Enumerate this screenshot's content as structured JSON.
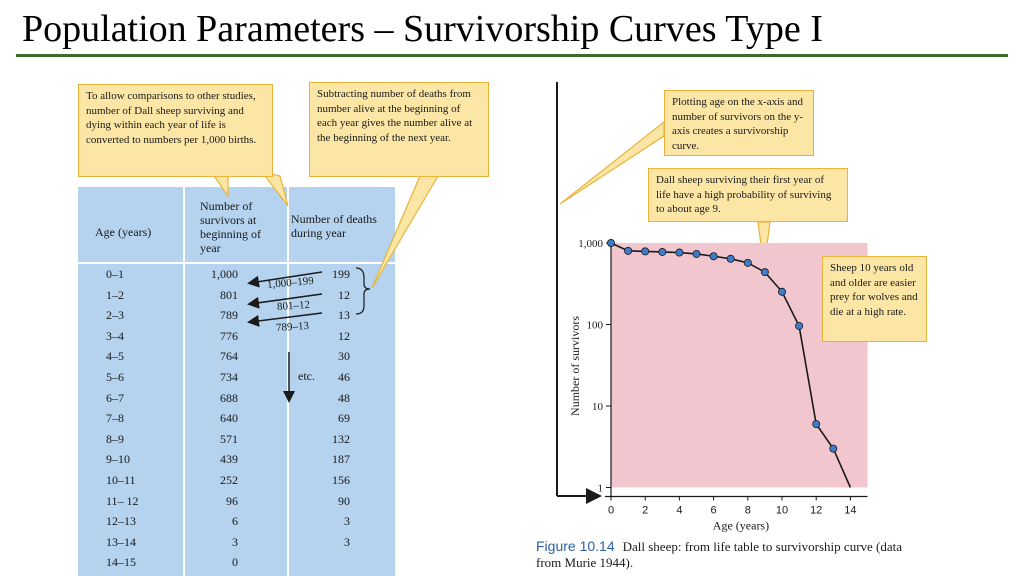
{
  "slide": {
    "title": "Population Parameters – Survivorship Curves Type I"
  },
  "life_table": {
    "headers": {
      "age": "Age (years)",
      "survivors": "Number of survivors at beginning of year",
      "deaths": "Number of deaths during year"
    },
    "rows": [
      {
        "age": "0–1",
        "survivors": "1,000",
        "deaths": "199"
      },
      {
        "age": "1–2",
        "survivors": "801",
        "deaths": "12"
      },
      {
        "age": "2–3",
        "survivors": "789",
        "deaths": "13"
      },
      {
        "age": "3–4",
        "survivors": "776",
        "deaths": "12"
      },
      {
        "age": "4–5",
        "survivors": "764",
        "deaths": "30"
      },
      {
        "age": "5–6",
        "survivors": "734",
        "deaths": "46"
      },
      {
        "age": "6–7",
        "survivors": "688",
        "deaths": "48"
      },
      {
        "age": "7–8",
        "survivors": "640",
        "deaths": "69"
      },
      {
        "age": "8–9",
        "survivors": "571",
        "deaths": "132"
      },
      {
        "age": "9–10",
        "survivors": "439",
        "deaths": "187"
      },
      {
        "age": "10–11",
        "survivors": "252",
        "deaths": "156"
      },
      {
        "age": "11– 12",
        "survivors": "96",
        "deaths": "90"
      },
      {
        "age": "12–13",
        "survivors": "6",
        "deaths": "3"
      },
      {
        "age": "13–14",
        "survivors": "3",
        "deaths": "3"
      },
      {
        "age": "14–15",
        "survivors": "0",
        "deaths": ""
      }
    ],
    "annotations": {
      "calc1": "1,000–199",
      "calc2": "801–12",
      "calc3": "789–13",
      "etc": "etc."
    }
  },
  "callouts": {
    "comparisons": "To allow comparisons to other studies, number of Dall sheep surviving and dying within each year of life is converted to numbers per 1,000 births.",
    "subtracting": "Subtracting number of deaths from number alive at the beginning of each year gives the number alive at the beginning of the next year.",
    "plotting": "Plotting age on the x-axis and number of survivors on the y-axis creates a survivorship curve.",
    "first_year": "Dall sheep surviving their first year of life have a high probability of surviving to about age 9.",
    "older": "Sheep 10 years old and older are easier prey for wolves and die at a high rate."
  },
  "chart_data": {
    "type": "line",
    "title": "",
    "xlabel": "Age (years)",
    "ylabel": "Number of survivors",
    "y_scale": "log",
    "xlim": [
      0,
      15
    ],
    "ylim": [
      1,
      1000
    ],
    "x_ticks": [
      "0",
      "2",
      "4",
      "6",
      "8",
      "10",
      "12",
      "14"
    ],
    "y_ticks": [
      "1",
      "10",
      "100",
      "1,000"
    ],
    "grid": false,
    "background_color": "#f2c6cf",
    "line_color": "#1a1a1a",
    "marker_color": "#3d7cc9",
    "series": [
      {
        "x": [
          0,
          1,
          2,
          3,
          4,
          5,
          6,
          7,
          8,
          9,
          10,
          11,
          12,
          13,
          14
        ],
        "y": [
          1000,
          801,
          789,
          776,
          764,
          734,
          688,
          640,
          571,
          439,
          252,
          96,
          6,
          3,
          1
        ]
      }
    ]
  },
  "figure": {
    "number": "Figure 10.14",
    "caption": "Dall sheep: from life table to survivorship curve (data from Murie 1944)."
  }
}
